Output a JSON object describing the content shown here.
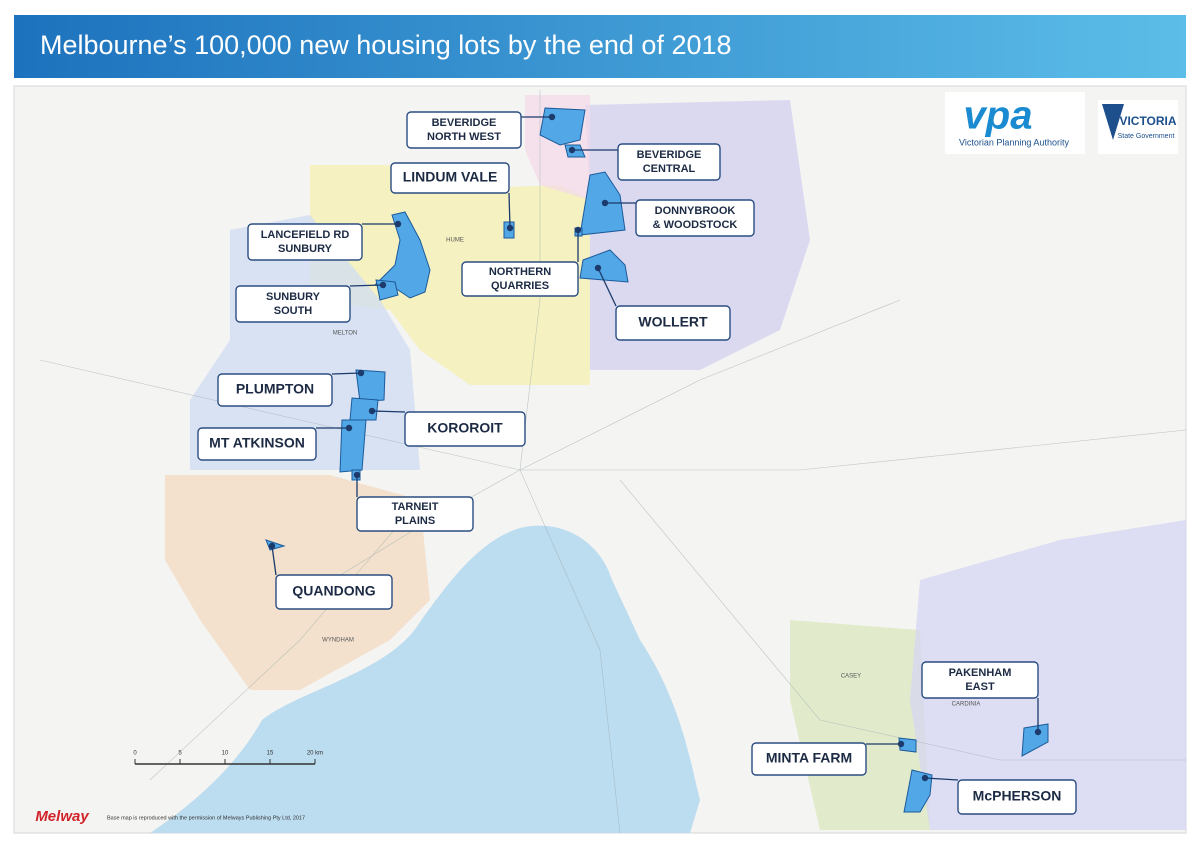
{
  "header": {
    "title": "Melbourne’s 100,000 new housing lots by the end of 2018"
  },
  "logos": {
    "vpa": "vpa",
    "vpa_name": "Victorian Planning Authority",
    "victoria": "VICTORIA",
    "victoria_sub": "State Government"
  },
  "labels": [
    {
      "lines": [
        "BEVERIDGE",
        "NORTH WEST"
      ]
    },
    {
      "lines": [
        "BEVERIDGE",
        "CENTRAL"
      ]
    },
    {
      "lines": [
        "LINDUM VALE"
      ]
    },
    {
      "lines": [
        "DONNYBROOK",
        "& WOODSTOCK"
      ]
    },
    {
      "lines": [
        "LANCEFIELD RD",
        "SUNBURY"
      ]
    },
    {
      "lines": [
        "NORTHERN",
        "QUARRIES"
      ]
    },
    {
      "lines": [
        "SUNBURY",
        "SOUTH"
      ]
    },
    {
      "lines": [
        "WOLLERT"
      ]
    },
    {
      "lines": [
        "PLUMPTON"
      ]
    },
    {
      "lines": [
        "KOROROIT"
      ]
    },
    {
      "lines": [
        "MT ATKINSON"
      ]
    },
    {
      "lines": [
        "TARNEIT",
        "PLAINS"
      ]
    },
    {
      "lines": [
        "QUANDONG"
      ]
    },
    {
      "lines": [
        "PAKENHAM",
        "EAST"
      ]
    },
    {
      "lines": [
        "MINTA FARM"
      ]
    },
    {
      "lines": [
        "McPHERSON"
      ]
    }
  ],
  "regions": [
    "HUME",
    "MELTON",
    "WYNDHAM",
    "CASEY",
    "CARDINIA"
  ],
  "scale": [
    "0",
    "5",
    "10",
    "15",
    "20 km"
  ],
  "footer": {
    "brand": "Melway",
    "credit": "Base map is reproduced with the permission of Melways Publishing Pty Ltd, 2017"
  }
}
